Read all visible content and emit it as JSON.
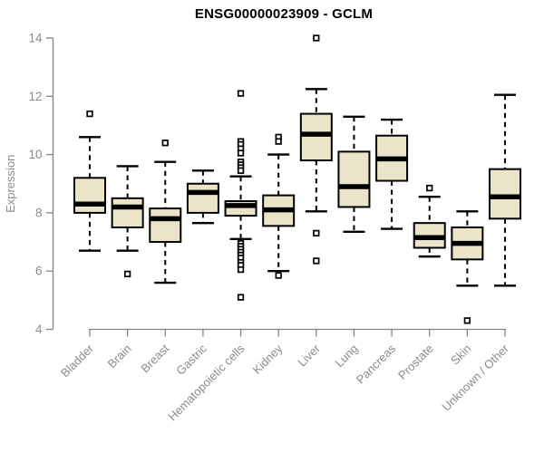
{
  "title": "ENSG00000023909 - GCLM",
  "y_axis": {
    "label": "Expression"
  },
  "colors": {
    "box_fill": "#EAE5C9",
    "box_border": "#000000",
    "median": "#000000",
    "whisker": "#000000",
    "outlier_stroke": "#000000",
    "outlier_fill": "#ffffff",
    "axis_line": "#848484",
    "tick_text": "#8b8b8b",
    "title_text": "#000000",
    "background": "#ffffff"
  },
  "chart_data": {
    "type": "boxplot",
    "title": "ENSG00000023909 - GCLM",
    "xlabel": "",
    "ylabel": "Expression",
    "ylim": [
      4,
      14
    ],
    "y_ticks": [
      4,
      6,
      8,
      10,
      12,
      14
    ],
    "grid": false,
    "legend": "none",
    "categories": [
      "Bladder",
      "Brain",
      "Breast",
      "Gastric",
      "Hematopoietic cells",
      "Kidney",
      "Liver",
      "Lung",
      "Pancreas",
      "Prostate",
      "Skin",
      "Unknown / Other"
    ],
    "series": [
      {
        "name": "Bladder",
        "whisker_low": 6.7,
        "q1": 8.0,
        "median": 8.3,
        "q3": 9.2,
        "whisker_high": 10.6,
        "outliers": [
          11.4
        ]
      },
      {
        "name": "Brain",
        "whisker_low": 6.7,
        "q1": 7.5,
        "median": 8.2,
        "q3": 8.5,
        "whisker_high": 9.6,
        "outliers": [
          5.9
        ]
      },
      {
        "name": "Breast",
        "whisker_low": 5.6,
        "q1": 7.0,
        "median": 7.8,
        "q3": 8.15,
        "whisker_high": 9.75,
        "outliers": [
          10.4
        ]
      },
      {
        "name": "Gastric",
        "whisker_low": 7.65,
        "q1": 8.0,
        "median": 8.7,
        "q3": 9.0,
        "whisker_high": 9.45,
        "outliers": []
      },
      {
        "name": "Hematopoietic cells",
        "whisker_low": 7.1,
        "q1": 7.9,
        "median": 8.25,
        "q3": 8.4,
        "whisker_high": 9.25,
        "outliers": [
          12.1,
          10.45,
          10.35,
          10.2,
          10.05,
          9.75,
          9.65,
          9.55,
          9.45,
          6.95,
          6.85,
          6.75,
          6.65,
          6.55,
          6.45,
          6.3,
          6.2,
          6.05,
          5.1
        ]
      },
      {
        "name": "Kidney",
        "whisker_low": 6.0,
        "q1": 7.55,
        "median": 8.1,
        "q3": 8.6,
        "whisker_high": 10.0,
        "outliers": [
          10.6,
          10.45,
          5.85
        ]
      },
      {
        "name": "Liver",
        "whisker_low": 8.05,
        "q1": 9.8,
        "median": 10.7,
        "q3": 11.4,
        "whisker_high": 12.25,
        "outliers": [
          14.0,
          7.3,
          6.35
        ]
      },
      {
        "name": "Lung",
        "whisker_low": 7.35,
        "q1": 8.2,
        "median": 8.9,
        "q3": 10.1,
        "whisker_high": 11.3,
        "outliers": []
      },
      {
        "name": "Pancreas",
        "whisker_low": 7.45,
        "q1": 9.1,
        "median": 9.85,
        "q3": 10.65,
        "whisker_high": 11.2,
        "outliers": []
      },
      {
        "name": "Prostate",
        "whisker_low": 6.5,
        "q1": 6.8,
        "median": 7.15,
        "q3": 7.65,
        "whisker_high": 8.55,
        "outliers": [
          8.85
        ]
      },
      {
        "name": "Skin",
        "whisker_low": 5.5,
        "q1": 6.4,
        "median": 6.95,
        "q3": 7.5,
        "whisker_high": 8.05,
        "outliers": [
          4.3
        ]
      },
      {
        "name": "Unknown / Other",
        "whisker_low": 5.5,
        "q1": 7.8,
        "median": 8.55,
        "q3": 9.5,
        "whisker_high": 12.05,
        "outliers": []
      }
    ]
  }
}
